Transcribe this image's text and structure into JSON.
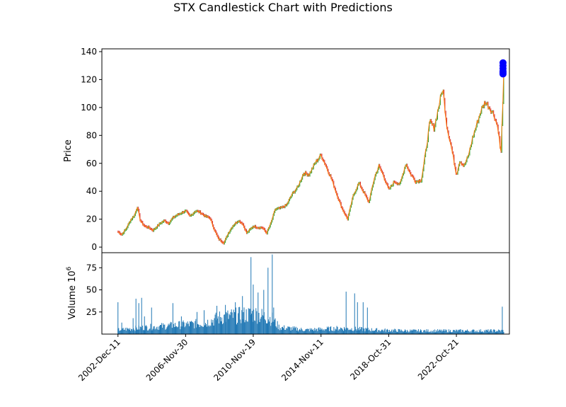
{
  "chart_data": {
    "type": "candlestick",
    "title": "STX Candlestick Chart with Predictions",
    "price_panel": {
      "ylabel": "Price",
      "ylim": [
        -4,
        142
      ],
      "yticks": [
        0,
        20,
        40,
        60,
        80,
        100,
        120,
        140
      ],
      "up_color": "#2ca02c",
      "down_color": "#d62728",
      "close_line_color": "#ff7f0e",
      "series_points": [
        {
          "date": "2002-Dec-11",
          "close": 11
        },
        {
          "date": "2003-Mar-01",
          "close": 9
        },
        {
          "date": "2003-Jun-01",
          "close": 13
        },
        {
          "date": "2003-Sep-01",
          "close": 19
        },
        {
          "date": "2003-Dec-01",
          "close": 23
        },
        {
          "date": "2004-Feb-01",
          "close": 29
        },
        {
          "date": "2004-Apr-01",
          "close": 19
        },
        {
          "date": "2004-Jul-01",
          "close": 15
        },
        {
          "date": "2004-Oct-01",
          "close": 14
        },
        {
          "date": "2005-Jan-01",
          "close": 12
        },
        {
          "date": "2005-Jun-01",
          "close": 17
        },
        {
          "date": "2005-Sep-01",
          "close": 19
        },
        {
          "date": "2005-Dec-01",
          "close": 17
        },
        {
          "date": "2006-Mar-01",
          "close": 21
        },
        {
          "date": "2006-Jun-01",
          "close": 23
        },
        {
          "date": "2006-Nov-30",
          "close": 26
        },
        {
          "date": "2007-Mar-01",
          "close": 22
        },
        {
          "date": "2007-Jul-01",
          "close": 26
        },
        {
          "date": "2007-Oct-01",
          "close": 25
        },
        {
          "date": "2008-Feb-01",
          "close": 22
        },
        {
          "date": "2008-May-01",
          "close": 21
        },
        {
          "date": "2008-Aug-01",
          "close": 13
        },
        {
          "date": "2008-Nov-01",
          "close": 6
        },
        {
          "date": "2009-Mar-01",
          "close": 3
        },
        {
          "date": "2009-Jun-01",
          "close": 10
        },
        {
          "date": "2009-Sep-01",
          "close": 15
        },
        {
          "date": "2010-Jan-01",
          "close": 19
        },
        {
          "date": "2010-Apr-01",
          "close": 17
        },
        {
          "date": "2010-Jul-01",
          "close": 10
        },
        {
          "date": "2010-Nov-19",
          "close": 15
        },
        {
          "date": "2011-Mar-01",
          "close": 14
        },
        {
          "date": "2011-Jun-01",
          "close": 14
        },
        {
          "date": "2011-Sep-01",
          "close": 10
        },
        {
          "date": "2011-Dec-01",
          "close": 17
        },
        {
          "date": "2012-Mar-01",
          "close": 27
        },
        {
          "date": "2012-Jul-01",
          "close": 28
        },
        {
          "date": "2012-Nov-01",
          "close": 30
        },
        {
          "date": "2013-Mar-01",
          "close": 38
        },
        {
          "date": "2013-Jul-01",
          "close": 43
        },
        {
          "date": "2013-Nov-01",
          "close": 53
        },
        {
          "date": "2014-Mar-01",
          "close": 52
        },
        {
          "date": "2014-Jul-01",
          "close": 60
        },
        {
          "date": "2014-Nov-11",
          "close": 66
        },
        {
          "date": "2015-Feb-01",
          "close": 60
        },
        {
          "date": "2015-Jul-01",
          "close": 48
        },
        {
          "date": "2015-Nov-01",
          "close": 36
        },
        {
          "date": "2016-Feb-01",
          "close": 28
        },
        {
          "date": "2016-Jun-01",
          "close": 20
        },
        {
          "date": "2016-Oct-01",
          "close": 37
        },
        {
          "date": "2017-Feb-01",
          "close": 46
        },
        {
          "date": "2017-Jun-01",
          "close": 38
        },
        {
          "date": "2017-Sep-01",
          "close": 32
        },
        {
          "date": "2018-Jan-01",
          "close": 50
        },
        {
          "date": "2018-Apr-01",
          "close": 58
        },
        {
          "date": "2018-Jul-01",
          "close": 52
        },
        {
          "date": "2018-Oct-31",
          "close": 41
        },
        {
          "date": "2019-Mar-01",
          "close": 47
        },
        {
          "date": "2019-Jul-01",
          "close": 45
        },
        {
          "date": "2019-Nov-01",
          "close": 60
        },
        {
          "date": "2020-Feb-01",
          "close": 53
        },
        {
          "date": "2020-Jun-01",
          "close": 47
        },
        {
          "date": "2020-Oct-01",
          "close": 48
        },
        {
          "date": "2021-Jan-01",
          "close": 68
        },
        {
          "date": "2021-Apr-01",
          "close": 90
        },
        {
          "date": "2021-Jul-01",
          "close": 85
        },
        {
          "date": "2021-Oct-01",
          "close": 100
        },
        {
          "date": "2022-Jan-01",
          "close": 114
        },
        {
          "date": "2022-Apr-01",
          "close": 86
        },
        {
          "date": "2022-Jul-01",
          "close": 72
        },
        {
          "date": "2022-Oct-21",
          "close": 52
        },
        {
          "date": "2023-Jan-01",
          "close": 62
        },
        {
          "date": "2023-Apr-01",
          "close": 58
        },
        {
          "date": "2023-Jul-01",
          "close": 65
        },
        {
          "date": "2023-Oct-01",
          "close": 78
        },
        {
          "date": "2024-Jan-01",
          "close": 88
        },
        {
          "date": "2024-Apr-01",
          "close": 98
        },
        {
          "date": "2024-Jul-01",
          "close": 104
        },
        {
          "date": "2024-Oct-01",
          "close": 100
        },
        {
          "date": "2025-Jan-01",
          "close": 95
        },
        {
          "date": "2025-Apr-01",
          "close": 85
        },
        {
          "date": "2025-Jun-01",
          "close": 66
        },
        {
          "date": "2025-Aug-01",
          "close": 124
        }
      ],
      "predictions": {
        "color": "#0000ff",
        "values": [
          132,
          130,
          128,
          126,
          125,
          124
        ]
      }
    },
    "volume_panel": {
      "ylabel": "Volume  10",
      "ylabel_exponent": "6",
      "ylim": [
        0,
        92
      ],
      "yticks": [
        25,
        50,
        75
      ],
      "bar_color": "#1f77b4",
      "spikes": [
        {
          "date": "2002-Dec-11",
          "value": 36
        },
        {
          "date": "2003-Mar-01",
          "value": 13
        },
        {
          "date": "2003-Nov-01",
          "value": 18
        },
        {
          "date": "2004-Jan-01",
          "value": 40
        },
        {
          "date": "2004-Mar-01",
          "value": 35
        },
        {
          "date": "2004-May-01",
          "value": 41
        },
        {
          "date": "2004-Jul-01",
          "value": 20
        },
        {
          "date": "2004-Dec-01",
          "value": 30
        },
        {
          "date": "2006-Mar-01",
          "value": 35
        },
        {
          "date": "2006-Sep-01",
          "value": 20
        },
        {
          "date": "2007-Aug-01",
          "value": 25
        },
        {
          "date": "2008-Jan-01",
          "value": 27
        },
        {
          "date": "2008-Oct-01",
          "value": 32
        },
        {
          "date": "2009-Apr-01",
          "value": 33
        },
        {
          "date": "2009-Nov-01",
          "value": 36
        },
        {
          "date": "2010-Apr-01",
          "value": 43
        },
        {
          "date": "2010-Oct-01",
          "value": 87
        },
        {
          "date": "2010-Nov-19",
          "value": 56
        },
        {
          "date": "2011-Mar-01",
          "value": 47
        },
        {
          "date": "2011-Jul-01",
          "value": 50
        },
        {
          "date": "2011-Oct-01",
          "value": 75
        },
        {
          "date": "2012-Jan-01",
          "value": 90
        },
        {
          "date": "2012-Feb-01",
          "value": 30
        },
        {
          "date": "2016-May-01",
          "value": 48
        },
        {
          "date": "2016-Nov-01",
          "value": 46
        },
        {
          "date": "2017-Jan-01",
          "value": 36
        },
        {
          "date": "2017-May-01",
          "value": 36
        },
        {
          "date": "2017-Aug-01",
          "value": 30
        },
        {
          "date": "2025-Jul-01",
          "value": 31
        }
      ],
      "baseline_by_year": [
        {
          "date": "2002-Dec-11",
          "value": 5
        },
        {
          "date": "2004-Jan-01",
          "value": 7
        },
        {
          "date": "2006-Jan-01",
          "value": 10
        },
        {
          "date": "2008-Jan-01",
          "value": 13
        },
        {
          "date": "2009-Jan-01",
          "value": 20
        },
        {
          "date": "2010-Jan-01",
          "value": 22
        },
        {
          "date": "2011-Jan-01",
          "value": 24
        },
        {
          "date": "2012-Jan-01",
          "value": 18
        },
        {
          "date": "2012-Jun-01",
          "value": 8
        },
        {
          "date": "2014-Jan-01",
          "value": 5
        },
        {
          "date": "2016-Jan-01",
          "value": 7
        },
        {
          "date": "2018-Jan-01",
          "value": 5
        },
        {
          "date": "2020-Jan-01",
          "value": 4
        },
        {
          "date": "2025-Aug-01",
          "value": 4
        }
      ]
    },
    "x_axis": {
      "range": [
        "2002-Jan-01",
        "2025-Dec-01"
      ],
      "tick_labels": [
        "2002-Dec-11",
        "2006-Nov-30",
        "2010-Nov-19",
        "2014-Nov-11",
        "2018-Oct-31",
        "2022-Oct-21"
      ],
      "tick_rotation_deg": 45
    }
  }
}
